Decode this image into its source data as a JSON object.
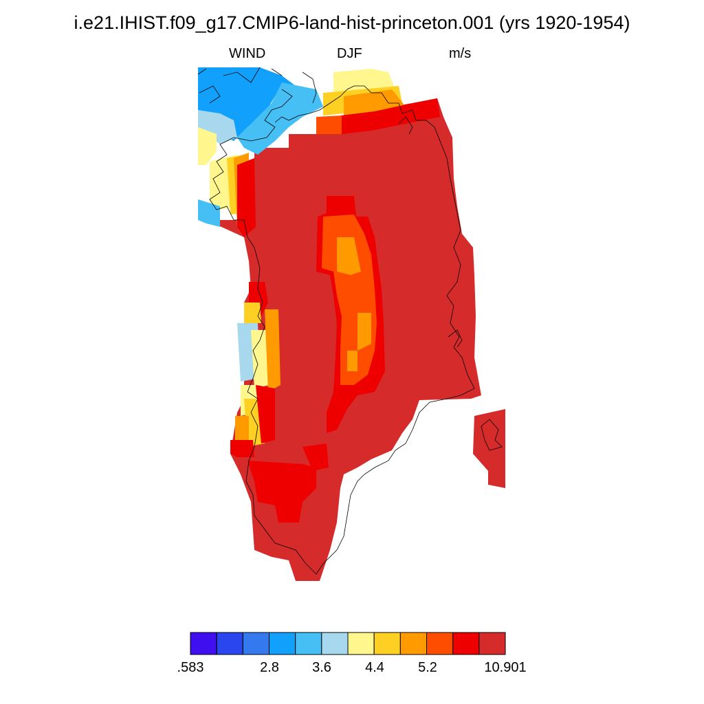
{
  "title": "i.e21.IHIST.f09_g17.CMIP6-land-hist-princeton.001 (yrs 1920-1954)",
  "variable": "WIND",
  "season": "DJF",
  "units": "m/s",
  "colorbar": {
    "colors": [
      "#3f0ff0",
      "#2a46ee",
      "#3579ee",
      "#11a0fc",
      "#45bff4",
      "#a7d8ee",
      "#fff78d",
      "#ffd024",
      "#ff9a00",
      "#ff4d00",
      "#ee0000",
      "#d52b2b"
    ],
    "tick_labels": [
      ".583",
      "2.8",
      "3.6",
      "4.4",
      "5.2",
      "10.901"
    ]
  },
  "chart_data": {
    "type": "heatmap",
    "title": "i.e21.IHIST.f09_g17.CMIP6-land-hist-princeton.001 (yrs 1920-1954)",
    "variable": "WIND",
    "season": "DJF",
    "units": "m/s",
    "data_min": 0.583,
    "data_max": 10.901,
    "contour_levels_labeled": [
      2.8,
      3.6,
      4.4,
      5.2
    ],
    "n_color_bins": 12,
    "region": "Greenland",
    "pattern": "Strong winds (>5.2 m/s, top bin up to 10.901) over most of the ice sheet; weaker winds (2.8-4.4 m/s) along the western and northwestern coast; a lower-wind core (4.4-5.2 m/s) along the central ridge"
  }
}
